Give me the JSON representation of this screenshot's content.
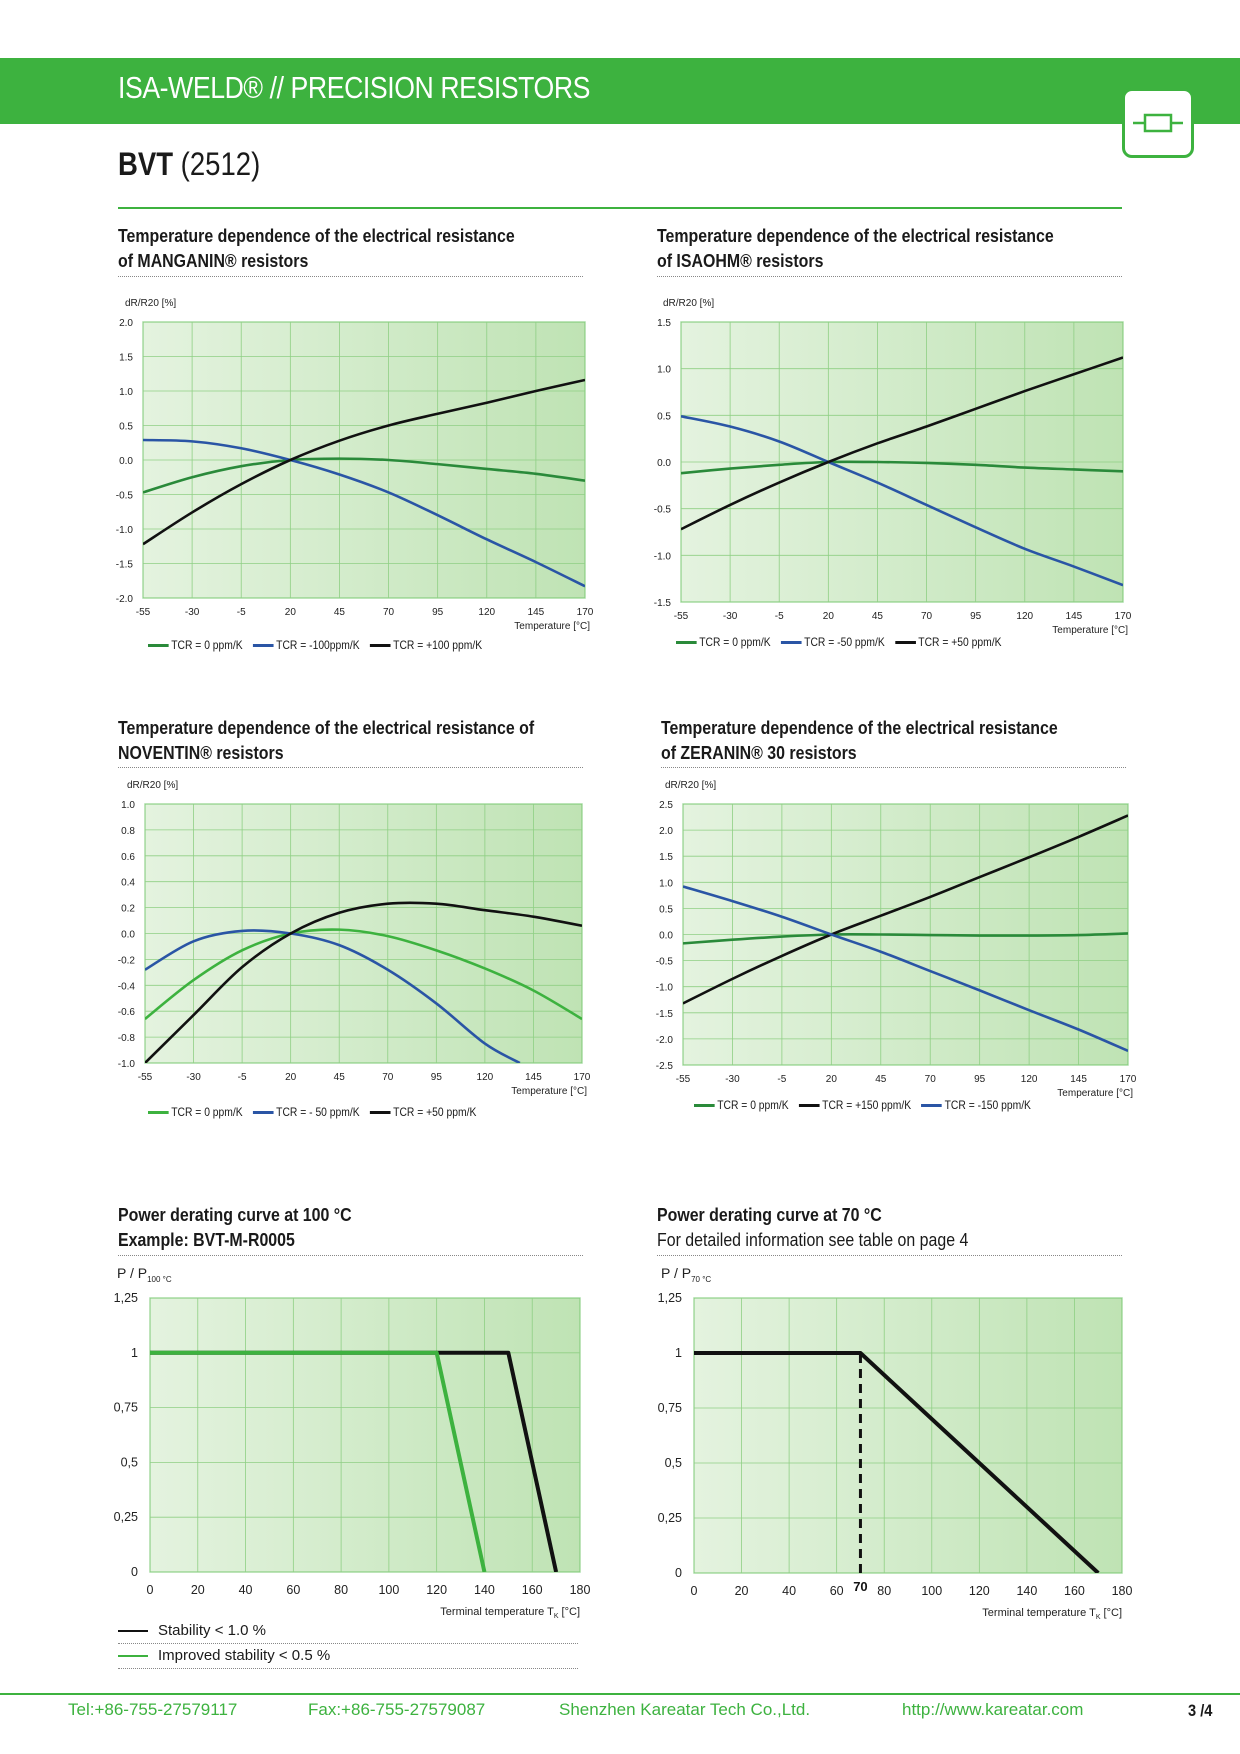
{
  "header": {
    "title": "ISA-WELD® // PRECISION RESISTORS",
    "product_code": "BVT",
    "product_size": "(2512)"
  },
  "colors": {
    "green": "#3db23f",
    "darkgreen": "#2a8a3a",
    "blue": "#2a55a5",
    "black": "#111111"
  },
  "icons": {
    "logo": "resistor-icon"
  },
  "sections": [
    {
      "title_line1": "Temperature dependence of the electrical resistance",
      "title_line2": "of MANGANIN® resistors"
    },
    {
      "title_line1": "Temperature dependence of the electrical resistance",
      "title_line2": "of ISAOHM® resistors"
    },
    {
      "title_line1": "Temperature dependence of the electrical resistance of",
      "title_line2": "NOVENTIN® resistors"
    },
    {
      "title_line1": "Temperature dependence of the electrical resistance",
      "title_line2": "of ZERANIN® 30 resistors"
    },
    {
      "title_line1": "Power derating curve at 100 °C",
      "title_line2": "Example: BVT-M-R0005"
    },
    {
      "title_line1": "Power derating curve at 70 °C",
      "title_line2": "For detailed information see table on page 4"
    }
  ],
  "stability_legend": [
    {
      "label": "Stability < 1.0 %",
      "color": "#111111"
    },
    {
      "label": "Improved stability < 0.5 %",
      "color": "#3db23f"
    }
  ],
  "chart_data": [
    {
      "type": "line",
      "title": "Temperature dependence of the electrical resistance of MANGANIN® resistors",
      "ylabel": "dR/R20 [%]",
      "xlabel": "Temperature [°C]",
      "xlim": [
        -55,
        170
      ],
      "ylim": [
        -2.0,
        2.0
      ],
      "xticks": [
        -55,
        -30,
        -5,
        20,
        45,
        70,
        95,
        120,
        145,
        170
      ],
      "xtick_labels": [
        "-55",
        "-30",
        "-5",
        "20",
        "45",
        "70",
        "95",
        "120",
        "145",
        "170"
      ],
      "yticks": [
        -2.0,
        -1.5,
        -1.0,
        -0.5,
        0.0,
        0.5,
        1.0,
        1.5,
        2.0
      ],
      "ytick_labels": [
        "-2.0",
        "-1.5",
        "-1.0",
        "-0.5",
        "0.0",
        "0.5",
        "1.0",
        "1.5",
        "2.0"
      ],
      "grid": true,
      "series": [
        {
          "name": "TCR = 0 ppm/K",
          "color": "#2a8a3a",
          "x": [
            -55,
            -30,
            -5,
            20,
            45,
            70,
            95,
            120,
            145,
            170
          ],
          "y": [
            -0.47,
            -0.25,
            -0.09,
            0.0,
            0.02,
            0.0,
            -0.06,
            -0.13,
            -0.2,
            -0.3
          ]
        },
        {
          "name": "TCR =  -100ppm/K",
          "color": "#2a55a5",
          "x": [
            -55,
            -30,
            -5,
            20,
            45,
            70,
            95,
            120,
            145,
            170
          ],
          "y": [
            0.29,
            0.27,
            0.17,
            0.0,
            -0.21,
            -0.47,
            -0.8,
            -1.15,
            -1.48,
            -1.83
          ]
        },
        {
          "name": "TCR = +100 ppm/K",
          "color": "#111111",
          "x": [
            -55,
            -30,
            -5,
            20,
            45,
            70,
            95,
            120,
            145,
            170
          ],
          "y": [
            -1.22,
            -0.76,
            -0.35,
            0.0,
            0.28,
            0.5,
            0.67,
            0.83,
            1.0,
            1.16
          ]
        }
      ]
    },
    {
      "type": "line",
      "title": "Temperature dependence of the electrical resistance of ISAOHM® resistors",
      "ylabel": "dR/R20 [%]",
      "xlabel": "Temperature [°C]",
      "xlim": [
        -55,
        170
      ],
      "ylim": [
        -1.5,
        1.5
      ],
      "xticks": [
        -55,
        -30,
        -5,
        20,
        45,
        70,
        95,
        120,
        145,
        170
      ],
      "xtick_labels": [
        "-55",
        "-30",
        "-5",
        "20",
        "45",
        "70",
        "95",
        "120",
        "145",
        "170"
      ],
      "yticks": [
        -1.5,
        -1.0,
        -0.5,
        0.0,
        0.5,
        1.0,
        1.5
      ],
      "ytick_labels": [
        "-1.5",
        "-1.0",
        "-0.5",
        "0.0",
        "0.5",
        "1.0",
        "1.5"
      ],
      "grid": true,
      "series": [
        {
          "name": "TCR = 0 ppm/K",
          "color": "#2a8a3a",
          "x": [
            -55,
            -30,
            -5,
            20,
            45,
            70,
            95,
            120,
            145,
            170
          ],
          "y": [
            -0.12,
            -0.07,
            -0.03,
            0.0,
            0.0,
            -0.01,
            -0.03,
            -0.06,
            -0.08,
            -0.1
          ]
        },
        {
          "name": "TCR =  -50 ppm/K",
          "color": "#2a55a5",
          "x": [
            -55,
            -30,
            -5,
            20,
            45,
            70,
            95,
            120,
            145,
            170
          ],
          "y": [
            0.49,
            0.38,
            0.22,
            0.0,
            -0.22,
            -0.46,
            -0.7,
            -0.93,
            -1.12,
            -1.32
          ]
        },
        {
          "name": "TCR = +50 ppm/K",
          "color": "#111111",
          "x": [
            -55,
            -30,
            -5,
            20,
            45,
            70,
            95,
            120,
            145,
            170
          ],
          "y": [
            -0.72,
            -0.46,
            -0.22,
            0.0,
            0.2,
            0.38,
            0.57,
            0.76,
            0.94,
            1.12
          ]
        }
      ]
    },
    {
      "type": "line",
      "title": "Temperature dependence of the electrical resistance of NOVENTIN® resistors",
      "ylabel": "dR/R20 [%]",
      "xlabel": "Temperature [°C]",
      "xlim": [
        -55,
        170
      ],
      "ylim": [
        -1.0,
        1.0
      ],
      "xticks": [
        -55,
        -30,
        -5,
        20,
        45,
        70,
        95,
        120,
        145,
        170
      ],
      "xtick_labels": [
        "-55",
        "-30",
        "-5",
        "20",
        "45",
        "70",
        "95",
        "120",
        "145",
        "170"
      ],
      "yticks": [
        -1.0,
        -0.8,
        -0.6,
        -0.4,
        -0.2,
        0.0,
        0.2,
        0.4,
        0.6,
        0.8,
        1.0
      ],
      "ytick_labels": [
        "-1.0",
        "-0.8",
        "-0.6",
        "-0.4",
        "-0.2",
        "0.0",
        "0.2",
        "0.4",
        "0.6",
        "0.8",
        "1.0"
      ],
      "grid": true,
      "series": [
        {
          "name": "TCR = 0 ppm/K",
          "color": "#3db23f",
          "x": [
            -55,
            -30,
            -5,
            20,
            45,
            70,
            95,
            120,
            145,
            170
          ],
          "y": [
            -0.66,
            -0.36,
            -0.13,
            0.0,
            0.03,
            -0.02,
            -0.13,
            -0.27,
            -0.44,
            -0.66
          ]
        },
        {
          "name": "TCR = - 50 ppm/K",
          "color": "#2a55a5",
          "x": [
            -55,
            -30,
            -5,
            20,
            45,
            70,
            95,
            120,
            138
          ],
          "y": [
            -0.28,
            -0.06,
            0.02,
            0.0,
            -0.09,
            -0.28,
            -0.54,
            -0.85,
            -1.0
          ]
        },
        {
          "name": "TCR = +50 ppm/K",
          "color": "#111111",
          "x": [
            -55,
            -30,
            -5,
            20,
            45,
            70,
            95,
            120,
            145,
            170
          ],
          "y": [
            -1.0,
            -0.63,
            -0.26,
            0.0,
            0.16,
            0.23,
            0.23,
            0.18,
            0.13,
            0.06
          ]
        }
      ]
    },
    {
      "type": "line",
      "title": "Temperature dependence of the electrical resistance of ZERANIN® 30 resistors",
      "ylabel": "dR/R20 [%]",
      "xlabel": "Temperature [°C]",
      "xlim": [
        -55,
        170
      ],
      "ylim": [
        -2.5,
        2.5
      ],
      "xticks": [
        -55,
        -30,
        -5,
        20,
        45,
        70,
        95,
        120,
        145,
        170
      ],
      "xtick_labels": [
        "-55",
        "-30",
        "-5",
        "20",
        "45",
        "70",
        "95",
        "120",
        "145",
        "170"
      ],
      "yticks": [
        -2.5,
        -2.0,
        -1.5,
        -1.0,
        -0.5,
        0.0,
        0.5,
        1.0,
        1.5,
        2.0,
        2.5
      ],
      "ytick_labels": [
        "-2.5",
        "-2.0",
        "-1.5",
        "-1.0",
        "-0.5",
        "0.0",
        "0.5",
        "1.0",
        "1.5",
        "2.0",
        "2.5"
      ],
      "grid": true,
      "series": [
        {
          "name": "TCR = 0 ppm/K",
          "color": "#2a8a3a",
          "x": [
            -55,
            -30,
            -5,
            20,
            45,
            70,
            95,
            120,
            145,
            170
          ],
          "y": [
            -0.17,
            -0.1,
            -0.04,
            0.0,
            0.0,
            -0.01,
            -0.02,
            -0.02,
            -0.01,
            0.02
          ]
        },
        {
          "name": "TCR = +150 ppm/K",
          "color": "#111111",
          "x": [
            -55,
            -30,
            -5,
            20,
            45,
            70,
            95,
            120,
            145,
            170
          ],
          "y": [
            -1.32,
            -0.85,
            -0.41,
            0.0,
            0.36,
            0.72,
            1.1,
            1.48,
            1.87,
            2.28
          ]
        },
        {
          "name": "TCR = -150 ppm/K",
          "color": "#2a55a5",
          "x": [
            -55,
            -30,
            -5,
            20,
            45,
            70,
            95,
            120,
            145,
            170
          ],
          "y": [
            0.92,
            0.64,
            0.34,
            0.0,
            -0.33,
            -0.7,
            -1.07,
            -1.45,
            -1.82,
            -2.23
          ]
        }
      ]
    },
    {
      "type": "line",
      "title": "Power derating curve at 100 °C",
      "ylabel_main": "P / P",
      "ylabel_sub": "100 °C",
      "xlabel_main": "Terminal temperature T",
      "xlabel_sub": "K",
      "xlabel_unit": " [°C]",
      "xlim": [
        0,
        180
      ],
      "ylim": [
        0,
        1.25
      ],
      "xticks": [
        0,
        20,
        40,
        60,
        80,
        100,
        120,
        140,
        160,
        180
      ],
      "xtick_labels": [
        "0",
        "20",
        "40",
        "60",
        "80",
        "100",
        "120",
        "140",
        "160",
        "180"
      ],
      "yticks": [
        0,
        0.25,
        0.5,
        0.75,
        1,
        1.25
      ],
      "ytick_labels": [
        "0",
        "0,25",
        "0,5",
        "0,75",
        "1",
        "1,25"
      ],
      "grid": true,
      "series": [
        {
          "color": "#111111",
          "x": [
            0,
            150,
            170
          ],
          "y": [
            1,
            1,
            0
          ]
        },
        {
          "color": "#3db23f",
          "x": [
            0,
            120,
            140
          ],
          "y": [
            1,
            1,
            0
          ]
        }
      ]
    },
    {
      "type": "line",
      "title": "Power derating curve at 70 °C",
      "ylabel_main": "P / P",
      "ylabel_sub": "70 °C",
      "xlabel_main": "Terminal temperature T",
      "xlabel_sub": "K",
      "xlabel_unit": " [°C]",
      "xlim": [
        0,
        180
      ],
      "ylim": [
        0,
        1.25
      ],
      "xticks": [
        0,
        20,
        40,
        60,
        80,
        100,
        120,
        140,
        160,
        180
      ],
      "xtick_labels": [
        "0",
        "20",
        "40",
        "60",
        "80",
        "100",
        "120",
        "140",
        "160",
        "180"
      ],
      "yticks": [
        0,
        0.25,
        0.5,
        0.75,
        1,
        1.25
      ],
      "ytick_labels": [
        "0",
        "0,25",
        "0,5",
        "0,75",
        "1",
        "1,25"
      ],
      "grid": true,
      "marker_label": "70",
      "series": [
        {
          "color": "#111111",
          "x": [
            0,
            70,
            170
          ],
          "y": [
            1,
            1,
            0
          ]
        }
      ],
      "dashed_line": {
        "x": 70,
        "y": [
          0,
          1
        ]
      }
    }
  ],
  "footer": {
    "tel": "Tel:+86-755-27579117",
    "fax": "Fax:+86-755-27579087",
    "company": "Shenzhen Kareatar Tech Co.,Ltd.",
    "url": "http://www.kareatar.com",
    "page": "3 /4"
  }
}
